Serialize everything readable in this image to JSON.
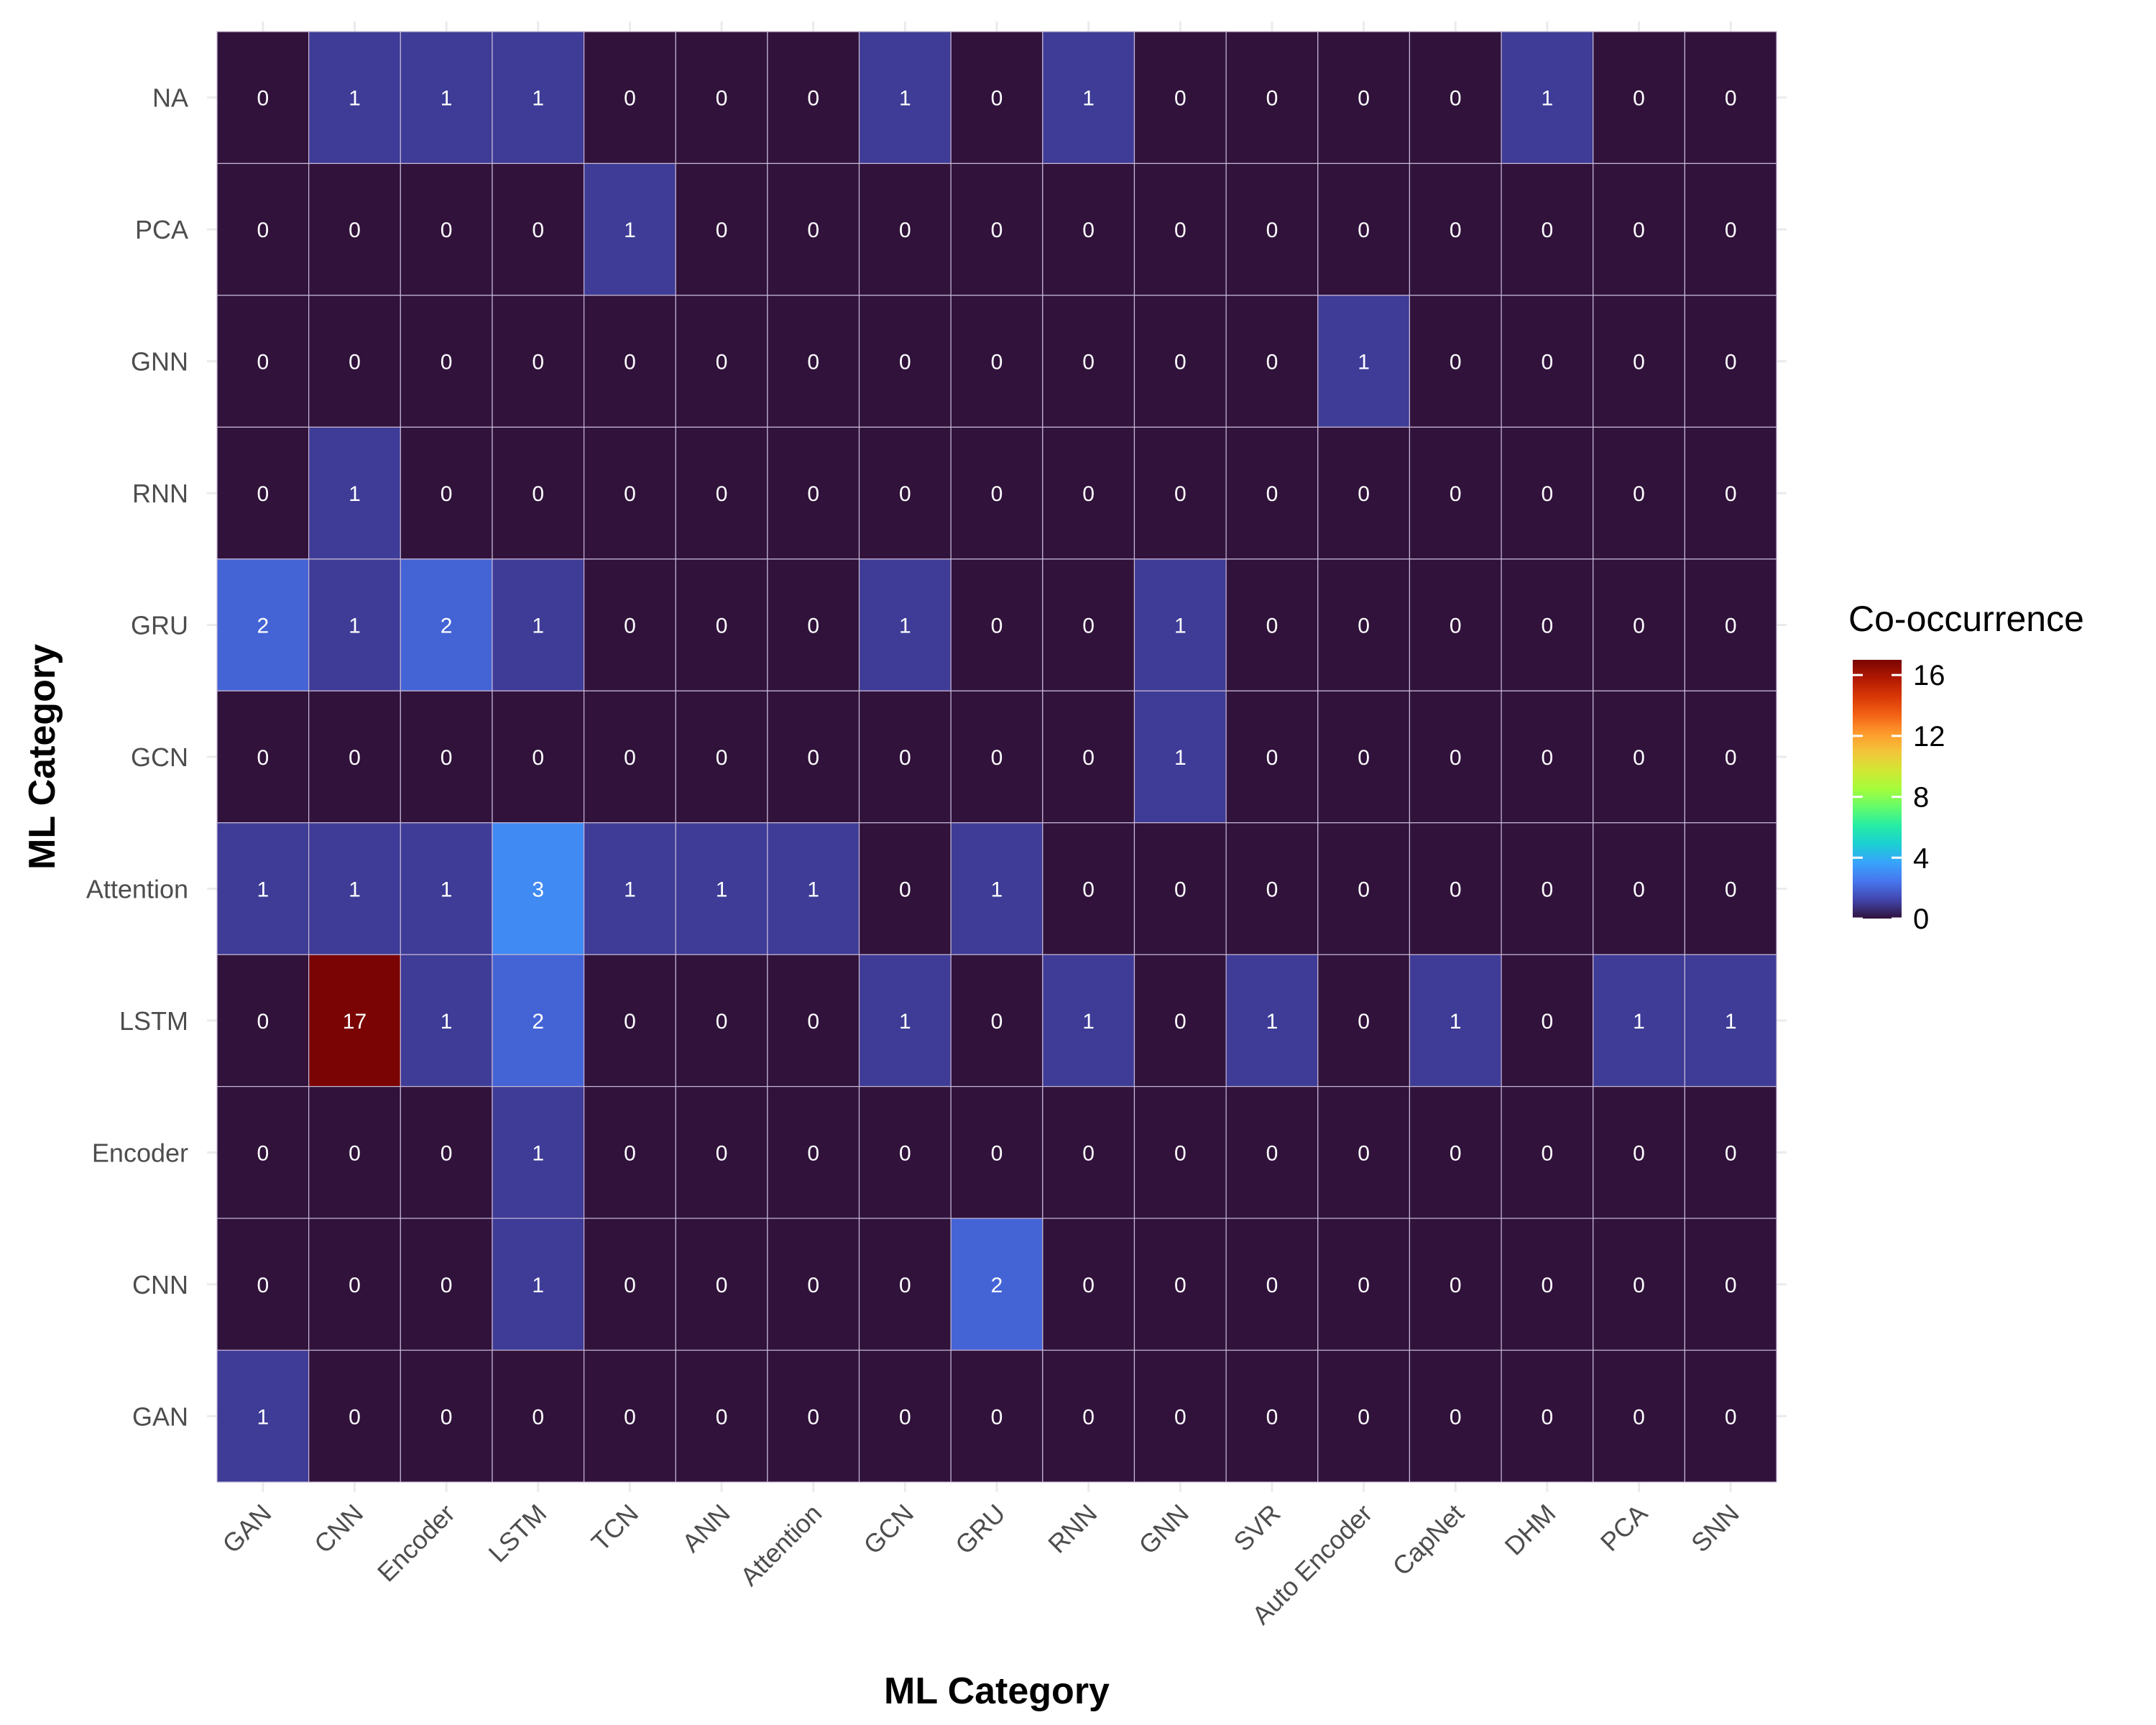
{
  "chart_data": {
    "type": "heatmap",
    "title": "",
    "xlabel": "ML Category",
    "ylabel": "ML Category",
    "x_categories": [
      "GAN",
      "CNN",
      "Encoder",
      "LSTM",
      "TCN",
      "ANN",
      "Attention",
      "GCN",
      "GRU",
      "RNN",
      "GNN",
      "SVR",
      "Auto Encoder",
      "CapNet",
      "DHM",
      "PCA",
      "SNN"
    ],
    "y_categories": [
      "NA",
      "PCA",
      "GNN",
      "RNN",
      "GRU",
      "GCN",
      "Attention",
      "LSTM",
      "Encoder",
      "CNN",
      "GAN"
    ],
    "values": [
      [
        0,
        1,
        1,
        1,
        0,
        0,
        0,
        1,
        0,
        1,
        0,
        0,
        0,
        0,
        1,
        0,
        0
      ],
      [
        0,
        0,
        0,
        0,
        1,
        0,
        0,
        0,
        0,
        0,
        0,
        0,
        0,
        0,
        0,
        0,
        0
      ],
      [
        0,
        0,
        0,
        0,
        0,
        0,
        0,
        0,
        0,
        0,
        0,
        0,
        1,
        0,
        0,
        0,
        0
      ],
      [
        0,
        1,
        0,
        0,
        0,
        0,
        0,
        0,
        0,
        0,
        0,
        0,
        0,
        0,
        0,
        0,
        0
      ],
      [
        2,
        1,
        2,
        1,
        0,
        0,
        0,
        1,
        0,
        0,
        1,
        0,
        0,
        0,
        0,
        0,
        0
      ],
      [
        0,
        0,
        0,
        0,
        0,
        0,
        0,
        0,
        0,
        0,
        1,
        0,
        0,
        0,
        0,
        0,
        0
      ],
      [
        1,
        1,
        1,
        3,
        1,
        1,
        1,
        0,
        1,
        0,
        0,
        0,
        0,
        0,
        0,
        0,
        0
      ],
      [
        0,
        17,
        1,
        2,
        0,
        0,
        0,
        1,
        0,
        1,
        0,
        1,
        0,
        1,
        0,
        1,
        1
      ],
      [
        0,
        0,
        0,
        1,
        0,
        0,
        0,
        0,
        0,
        0,
        0,
        0,
        0,
        0,
        0,
        0,
        0
      ],
      [
        0,
        0,
        0,
        1,
        0,
        0,
        0,
        0,
        2,
        0,
        0,
        0,
        0,
        0,
        0,
        0,
        0
      ],
      [
        1,
        0,
        0,
        0,
        0,
        0,
        0,
        0,
        0,
        0,
        0,
        0,
        0,
        0,
        0,
        0,
        0
      ]
    ],
    "cell_labels": [
      [
        "0",
        "1",
        "1",
        "1",
        "0",
        "0",
        "0",
        "1",
        "0",
        "1",
        "0",
        "0",
        "0",
        "0",
        "1",
        "0",
        "0"
      ],
      [
        "0",
        "0",
        "0",
        "0",
        "1",
        "0",
        "0",
        "0",
        "0",
        "0",
        "0",
        "0",
        "0",
        "0",
        "0",
        "0",
        "0"
      ],
      [
        "0",
        "0",
        "0",
        "0",
        "0",
        "0",
        "0",
        "0",
        "0",
        "0",
        "0",
        "0",
        "1",
        "0",
        "0",
        "0",
        "0"
      ],
      [
        "0",
        "1",
        "0",
        "0",
        "0",
        "0",
        "0",
        "0",
        "0",
        "0",
        "0",
        "0",
        "0",
        "0",
        "0",
        "0",
        "0"
      ],
      [
        "2",
        "1",
        "2",
        "1",
        "0",
        "0",
        "0",
        "1",
        "0",
        "0",
        "1",
        "0",
        "0",
        "0",
        "0",
        "0",
        "0"
      ],
      [
        "0",
        "0",
        "0",
        "0",
        "0",
        "0",
        "0",
        "0",
        "0",
        "0",
        "1",
        "0",
        "0",
        "0",
        "0",
        "0",
        "0"
      ],
      [
        "1",
        "1",
        "1",
        "3",
        "1",
        "1",
        "1",
        "0",
        "1",
        "0",
        "0",
        "0",
        "0",
        "0",
        "0",
        "0",
        "0"
      ],
      [
        "0",
        "17",
        "1",
        "2",
        "0",
        "0",
        "0",
        "1",
        "0",
        "1",
        "0",
        "1",
        "0",
        "1",
        "0",
        "1",
        "1"
      ],
      [
        "0",
        "0",
        "0",
        "1",
        "0",
        "0",
        "0",
        "0",
        "0",
        "0",
        "0",
        "0",
        "0",
        "0",
        "0",
        "0",
        "0"
      ],
      [
        "0",
        "0",
        "0",
        "1",
        "0",
        "0",
        "0",
        "0",
        "2",
        "0",
        "0",
        "0",
        "0",
        "0",
        "0",
        "0",
        "0"
      ],
      [
        "1",
        "0",
        "0",
        "0",
        "0",
        "0",
        "0",
        "0",
        "0",
        "0",
        "0",
        "0",
        "0",
        "0",
        "0",
        "0",
        "0"
      ]
    ],
    "legend": {
      "title": "Co-occurrence",
      "ticks": [
        16,
        12,
        8,
        4,
        0
      ],
      "tick_labels": [
        "16",
        "12",
        "8",
        "4",
        "0"
      ],
      "range": [
        0,
        17
      ],
      "placement": "right"
    },
    "color_scale": [
      "#30123b",
      "#4145ab",
      "#4675ed",
      "#39a2fc",
      "#1bcfd4",
      "#24eca6",
      "#61fc6c",
      "#a4fc3b",
      "#d1e834",
      "#f3c63a",
      "#fe9b2d",
      "#f36315",
      "#d93806",
      "#b11901",
      "#7a0403"
    ],
    "grid": true
  }
}
